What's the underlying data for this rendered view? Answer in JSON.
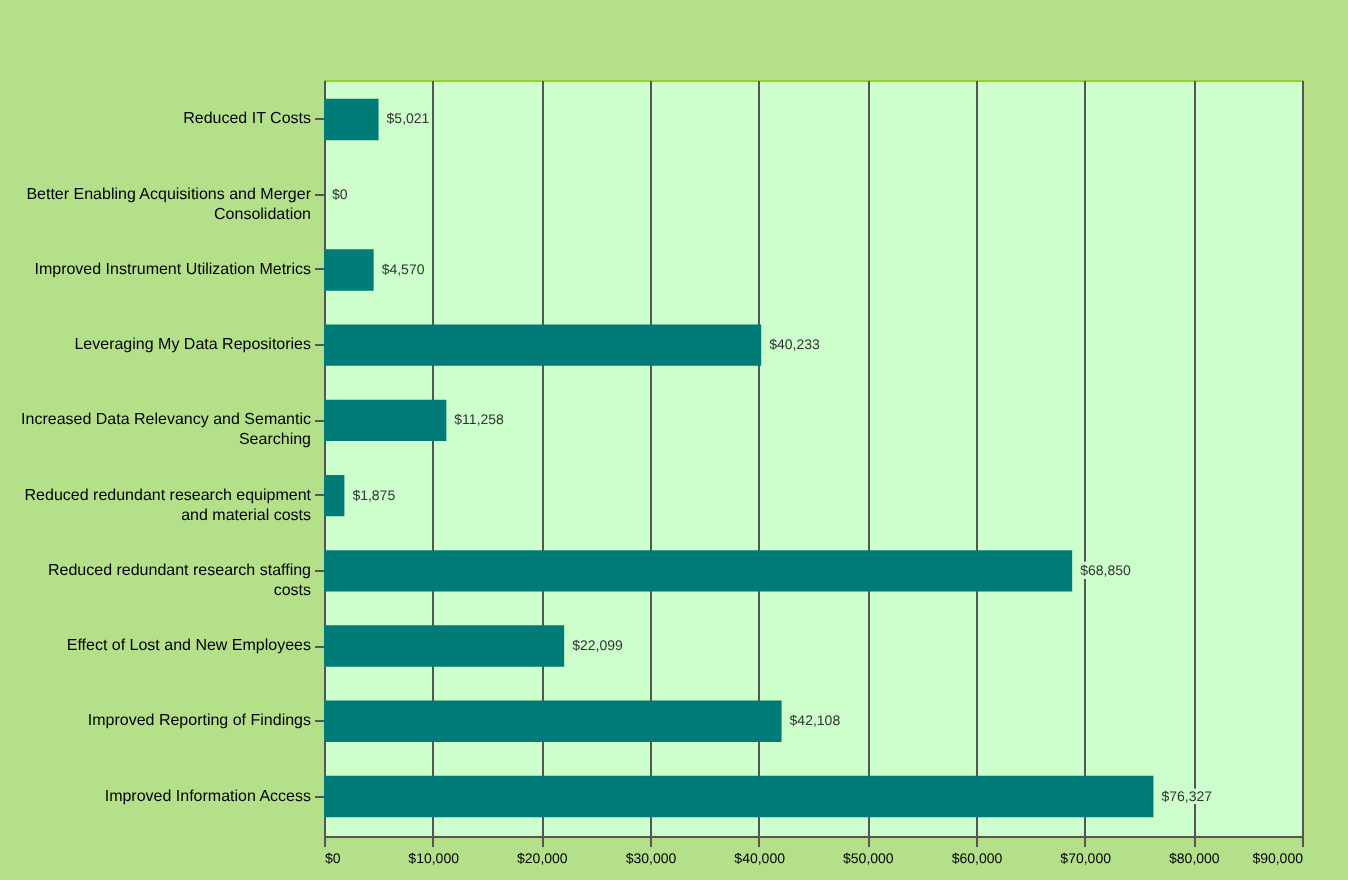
{
  "chart_data": {
    "type": "bar",
    "orientation": "horizontal",
    "categories": [
      "Reduced IT Costs",
      "Better Enabling Acquisitions and Merger Consolidation",
      "Improved Instrument Utilization Metrics",
      "Leveraging My Data Repositories",
      "Increased Data Relevancy and Semantic Searching",
      "Reduced redundant research equipment and material costs",
      "Reduced redundant research staffing costs",
      "Effect of Lost and New Employees",
      "Improved Reporting of Findings",
      "Improved Information Access"
    ],
    "values": [
      5021,
      0,
      4570,
      40233,
      11258,
      1875,
      68850,
      22099,
      42108,
      76327
    ],
    "value_labels": [
      "$5,021",
      "$0",
      "$4,570",
      "$40,233",
      "$11,258",
      "$1,875",
      "$68,850",
      "$22,099",
      "$42,108",
      "$76,327"
    ],
    "color": "#007b78",
    "xlim": [
      0,
      90000
    ],
    "xticks": [
      {
        "value": 0,
        "label": "$0"
      },
      {
        "value": 10000,
        "label": "$10,000"
      },
      {
        "value": 20000,
        "label": "$20,000"
      },
      {
        "value": 30000,
        "label": "$30,000"
      },
      {
        "value": 40000,
        "label": "$40,000"
      },
      {
        "value": 50000,
        "label": "$50,000"
      },
      {
        "value": 60000,
        "label": "$60,000"
      },
      {
        "value": 70000,
        "label": "$70,000"
      },
      {
        "value": 80000,
        "label": "$80,000"
      },
      {
        "value": 90000,
        "label": "$90,000"
      }
    ],
    "grid": "x"
  }
}
